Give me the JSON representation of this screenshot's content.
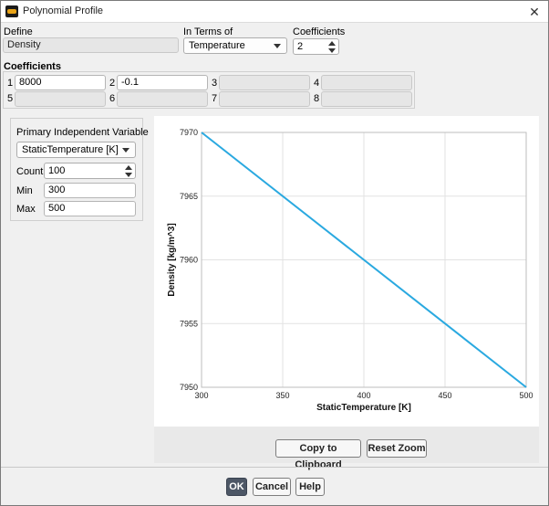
{
  "window": {
    "title": "Polynomial Profile"
  },
  "define": {
    "label": "Define",
    "value": "Density"
  },
  "in_terms_of": {
    "label": "In Terms of",
    "value": "Temperature"
  },
  "coefficients_count": {
    "label": "Coefficients",
    "value": "2"
  },
  "coefficients": {
    "label": "Coefficients",
    "items": [
      {
        "index": "1",
        "value": "8000"
      },
      {
        "index": "2",
        "value": "-0.1"
      },
      {
        "index": "3",
        "value": ""
      },
      {
        "index": "4",
        "value": ""
      },
      {
        "index": "5",
        "value": ""
      },
      {
        "index": "6",
        "value": ""
      },
      {
        "index": "7",
        "value": ""
      },
      {
        "index": "8",
        "value": ""
      }
    ]
  },
  "independent_variable": {
    "title": "Primary Independent Variable",
    "variable": "StaticTemperature [K]",
    "count_label": "Count",
    "count_value": "100",
    "min_label": "Min",
    "min_value": "300",
    "max_label": "Max",
    "max_value": "500"
  },
  "buttons": {
    "copy": "Copy to Clipboard",
    "reset_zoom": "Reset Zoom",
    "ok": "OK",
    "cancel": "Cancel",
    "help": "Help"
  },
  "colors": {
    "line": "#2aa9e0",
    "grid": "#e2e2e2",
    "ok_button": "#4d5766"
  },
  "chart_data": {
    "type": "line",
    "xlabel": "StaticTemperature [K]",
    "ylabel": "Density [kg/m^3]",
    "xlim": [
      300,
      500
    ],
    "ylim": [
      7950,
      7970
    ],
    "xticks": [
      "300",
      "350",
      "400",
      "450",
      "500"
    ],
    "yticks": [
      "7950",
      "7955",
      "7960",
      "7965",
      "7970"
    ],
    "grid": true,
    "series": [
      {
        "x": [
          300,
          500
        ],
        "y": [
          7970,
          7950
        ]
      }
    ]
  }
}
